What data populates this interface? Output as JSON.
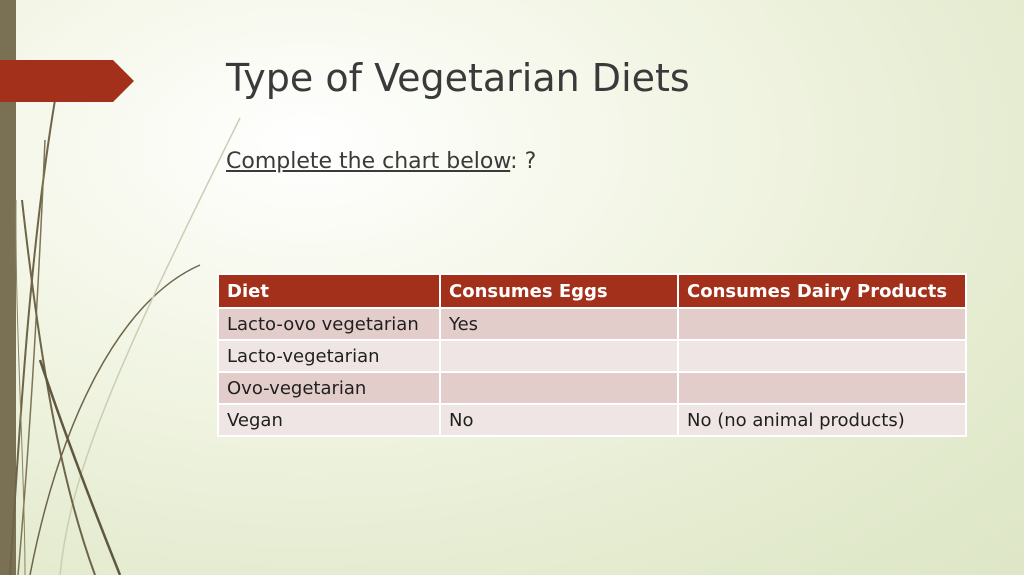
{
  "slide": {
    "title": "Type of Vegetarian Diets",
    "subtitle_underlined": "Complete the chart below",
    "subtitle_suffix": ": ?"
  },
  "table": {
    "headers": [
      "Diet",
      "Consumes Eggs",
      "Consumes Dairy Products"
    ],
    "rows": [
      [
        "Lacto-ovo vegetarian",
        "Yes",
        ""
      ],
      [
        "Lacto-vegetarian",
        "",
        ""
      ],
      [
        "Ovo-vegetarian",
        "",
        ""
      ],
      [
        "Vegan",
        "No",
        "No (no animal products)"
      ]
    ]
  },
  "colors": {
    "accent": "#a3301a",
    "left_bar": "#7a7154",
    "row_odd": "#e3cdcb",
    "row_even": "#efe5e4"
  }
}
